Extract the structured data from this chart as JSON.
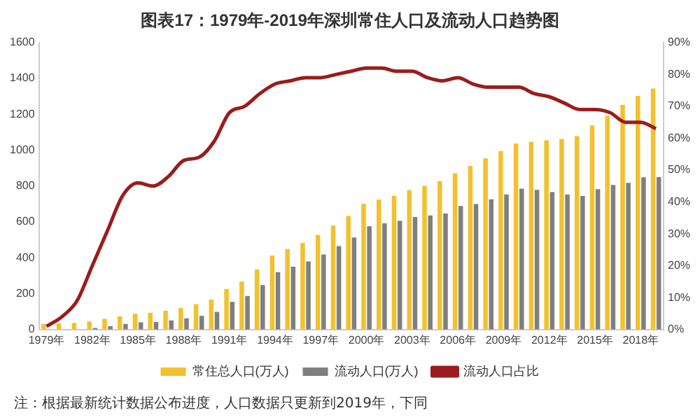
{
  "chart_data": {
    "type": "bar",
    "title": "图表17：1979年-2019年深圳常住人口及流动人口趋势图",
    "categories": [
      "1979年",
      null,
      null,
      "1982年",
      null,
      null,
      "1985年",
      null,
      null,
      "1988年",
      null,
      null,
      "1991年",
      null,
      null,
      "1994年",
      null,
      null,
      "1997年",
      null,
      null,
      "2000年",
      null,
      null,
      "2003年",
      null,
      null,
      "2006年",
      null,
      null,
      "2009年",
      null,
      null,
      "2012年",
      null,
      null,
      "2015年",
      null,
      null,
      "2018年",
      null
    ],
    "series": [
      {
        "name": "常住总人口(万人)",
        "color": "#f2c12e",
        "values": [
          31,
          33,
          37,
          45,
          60,
          74,
          88,
          94,
          105,
          120,
          142,
          168,
          227,
          268,
          335,
          413,
          449,
          483,
          528,
          580,
          633,
          701,
          725,
          747,
          778,
          801,
          828,
          871,
          912,
          954,
          995,
          1037,
          1047,
          1055,
          1063,
          1078,
          1138,
          1191,
          1253,
          1303,
          1344
        ]
      },
      {
        "name": "流动人口(万人)",
        "color": "#7f7f7f",
        "values": [
          0,
          null,
          null,
          9,
          19,
          31,
          40,
          42,
          51,
          63,
          76,
          99,
          154,
          188,
          248,
          320,
          350,
          380,
          419,
          466,
          513,
          576,
          592,
          606,
          628,
          636,
          647,
          689,
          700,
          726,
          753,
          786,
          779,
          767,
          753,
          745,
          783,
          806,
          818,
          849,
          850
        ]
      },
      {
        "name": "流动人口占比",
        "type": "line",
        "axis": "y2",
        "color": "#9b1c1c",
        "values": [
          1,
          4,
          9,
          20,
          31,
          42,
          46,
          45,
          48,
          53,
          54,
          59,
          68,
          70,
          74,
          77,
          78,
          79,
          79,
          80,
          81,
          82,
          82,
          81,
          81,
          79,
          78,
          79,
          77,
          76,
          76,
          76,
          74,
          73,
          71,
          69,
          69,
          68,
          65,
          65,
          63
        ]
      }
    ],
    "ylim": [
      0,
      1600
    ],
    "yticks": [
      0,
      200,
      400,
      600,
      800,
      1000,
      1200,
      1400,
      1600
    ],
    "y2lim": [
      0,
      90
    ],
    "y2ticks": [
      {
        "value": 0,
        "label": "0%"
      },
      {
        "value": 10,
        "label": "10%"
      },
      {
        "value": 20,
        "label": "20%"
      },
      {
        "value": 30,
        "label": "30%"
      },
      {
        "value": 40,
        "label": "40%"
      },
      {
        "value": 50,
        "label": "50%"
      },
      {
        "value": 60,
        "label": "60%"
      },
      {
        "value": 70,
        "label": "70%"
      },
      {
        "value": 80,
        "label": "80%"
      },
      {
        "value": 90,
        "label": "90%"
      }
    ],
    "grid": false,
    "legend": "bottom",
    "annotations": [
      "注：根据最新统计数据公布进度，人口数据只更新到2019年，下同"
    ]
  }
}
